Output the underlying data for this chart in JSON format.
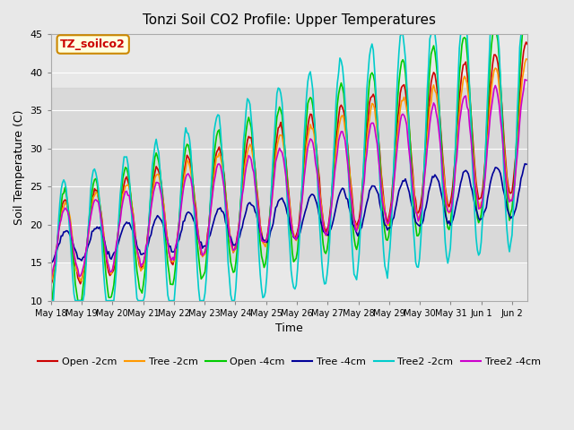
{
  "title": "Tonzi Soil CO2 Profile: Upper Temperatures",
  "xlabel": "Time",
  "ylabel": "Soil Temperature (C)",
  "ylim": [
    10,
    45
  ],
  "n_days": 15.5,
  "annotation": "TZ_soilco2",
  "bg_color": "#e8e8e8",
  "legend_entries": [
    "Open -2cm",
    "Tree -2cm",
    "Open -4cm",
    "Tree -4cm",
    "Tree2 -2cm",
    "Tree2 -4cm"
  ],
  "line_colors": [
    "#cc0000",
    "#ff9900",
    "#00cc00",
    "#000099",
    "#00cccc",
    "#cc00cc"
  ],
  "tick_labels": [
    "May 18",
    "May 19",
    "May 20",
    "May 21",
    "May 22",
    "May 23",
    "May 24",
    "May 25",
    "May 26",
    "May 27",
    "May 28",
    "May 29",
    "May 30",
    "May 31",
    "Jun 1",
    "Jun 2"
  ],
  "yticks": [
    10,
    15,
    20,
    25,
    30,
    35,
    40,
    45
  ]
}
